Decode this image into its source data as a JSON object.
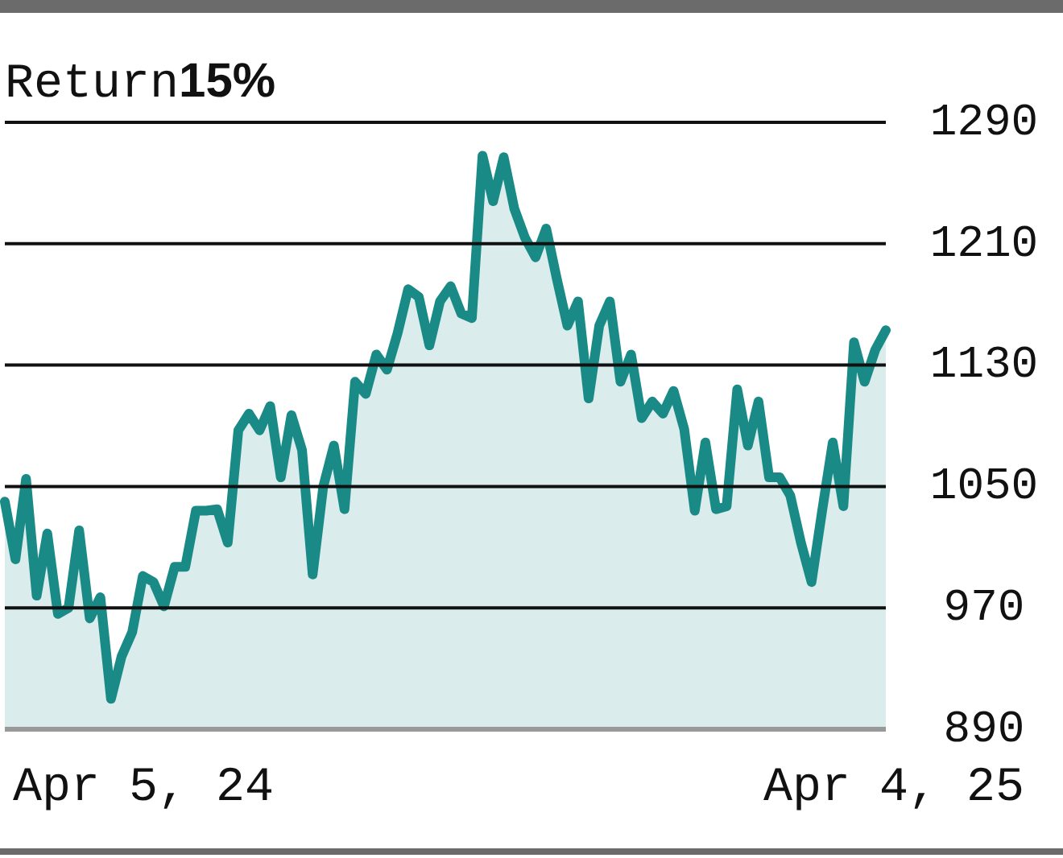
{
  "chart_data": {
    "type": "area",
    "title": "Return",
    "subtitle": "15%",
    "annotations": [
      "Apr 5, 24",
      "Apr 4, 25"
    ],
    "categories": [
      null,
      null,
      null,
      null,
      null,
      null,
      null,
      null,
      null,
      null,
      null,
      null,
      null,
      null,
      null,
      null,
      null,
      null,
      null,
      null,
      null,
      null,
      null,
      null,
      null,
      null,
      null,
      null,
      null,
      null,
      null,
      null,
      null,
      null,
      null,
      null,
      null,
      null,
      null,
      null,
      null,
      null,
      null,
      null,
      null,
      null,
      null,
      null,
      null,
      null,
      null,
      null,
      null,
      null,
      null,
      null,
      null,
      null,
      null,
      null,
      null,
      null,
      null,
      null,
      null,
      null,
      null,
      null,
      null,
      null,
      null,
      null,
      null,
      null,
      null,
      null,
      null,
      null,
      null,
      null,
      null,
      null,
      null,
      null
    ],
    "series": [
      {
        "color": "#1a8a87",
        "values": [
          1040,
          1002,
          1055,
          978,
          1019,
          966,
          970,
          1021,
          963,
          977,
          910,
          938,
          954,
          991,
          987,
          971,
          997,
          997,
          1034,
          1034,
          1035,
          1013,
          1087,
          1098,
          1087,
          1103,
          1056,
          1097,
          1074,
          992,
          1050,
          1077,
          1035,
          1119,
          1111,
          1137,
          1127,
          1151,
          1180,
          1175,
          1143,
          1172,
          1182,
          1164,
          1161,
          1268,
          1238,
          1267,
          1233,
          1214,
          1201,
          1220,
          1187,
          1156,
          1172,
          1108,
          1156,
          1172,
          1119,
          1137,
          1095,
          1106,
          1098,
          1113,
          1088,
          1034,
          1079,
          1035,
          1037,
          1114,
          1077,
          1106,
          1056,
          1056,
          1044,
          1013,
          987,
          1034,
          1079,
          1037,
          1145,
          1119,
          1140,
          1153
        ]
      }
    ],
    "ylim": [
      890,
      1290
    ],
    "yticks": [
      890,
      970,
      1050,
      1130,
      1210,
      1290
    ],
    "grid": "y"
  }
}
